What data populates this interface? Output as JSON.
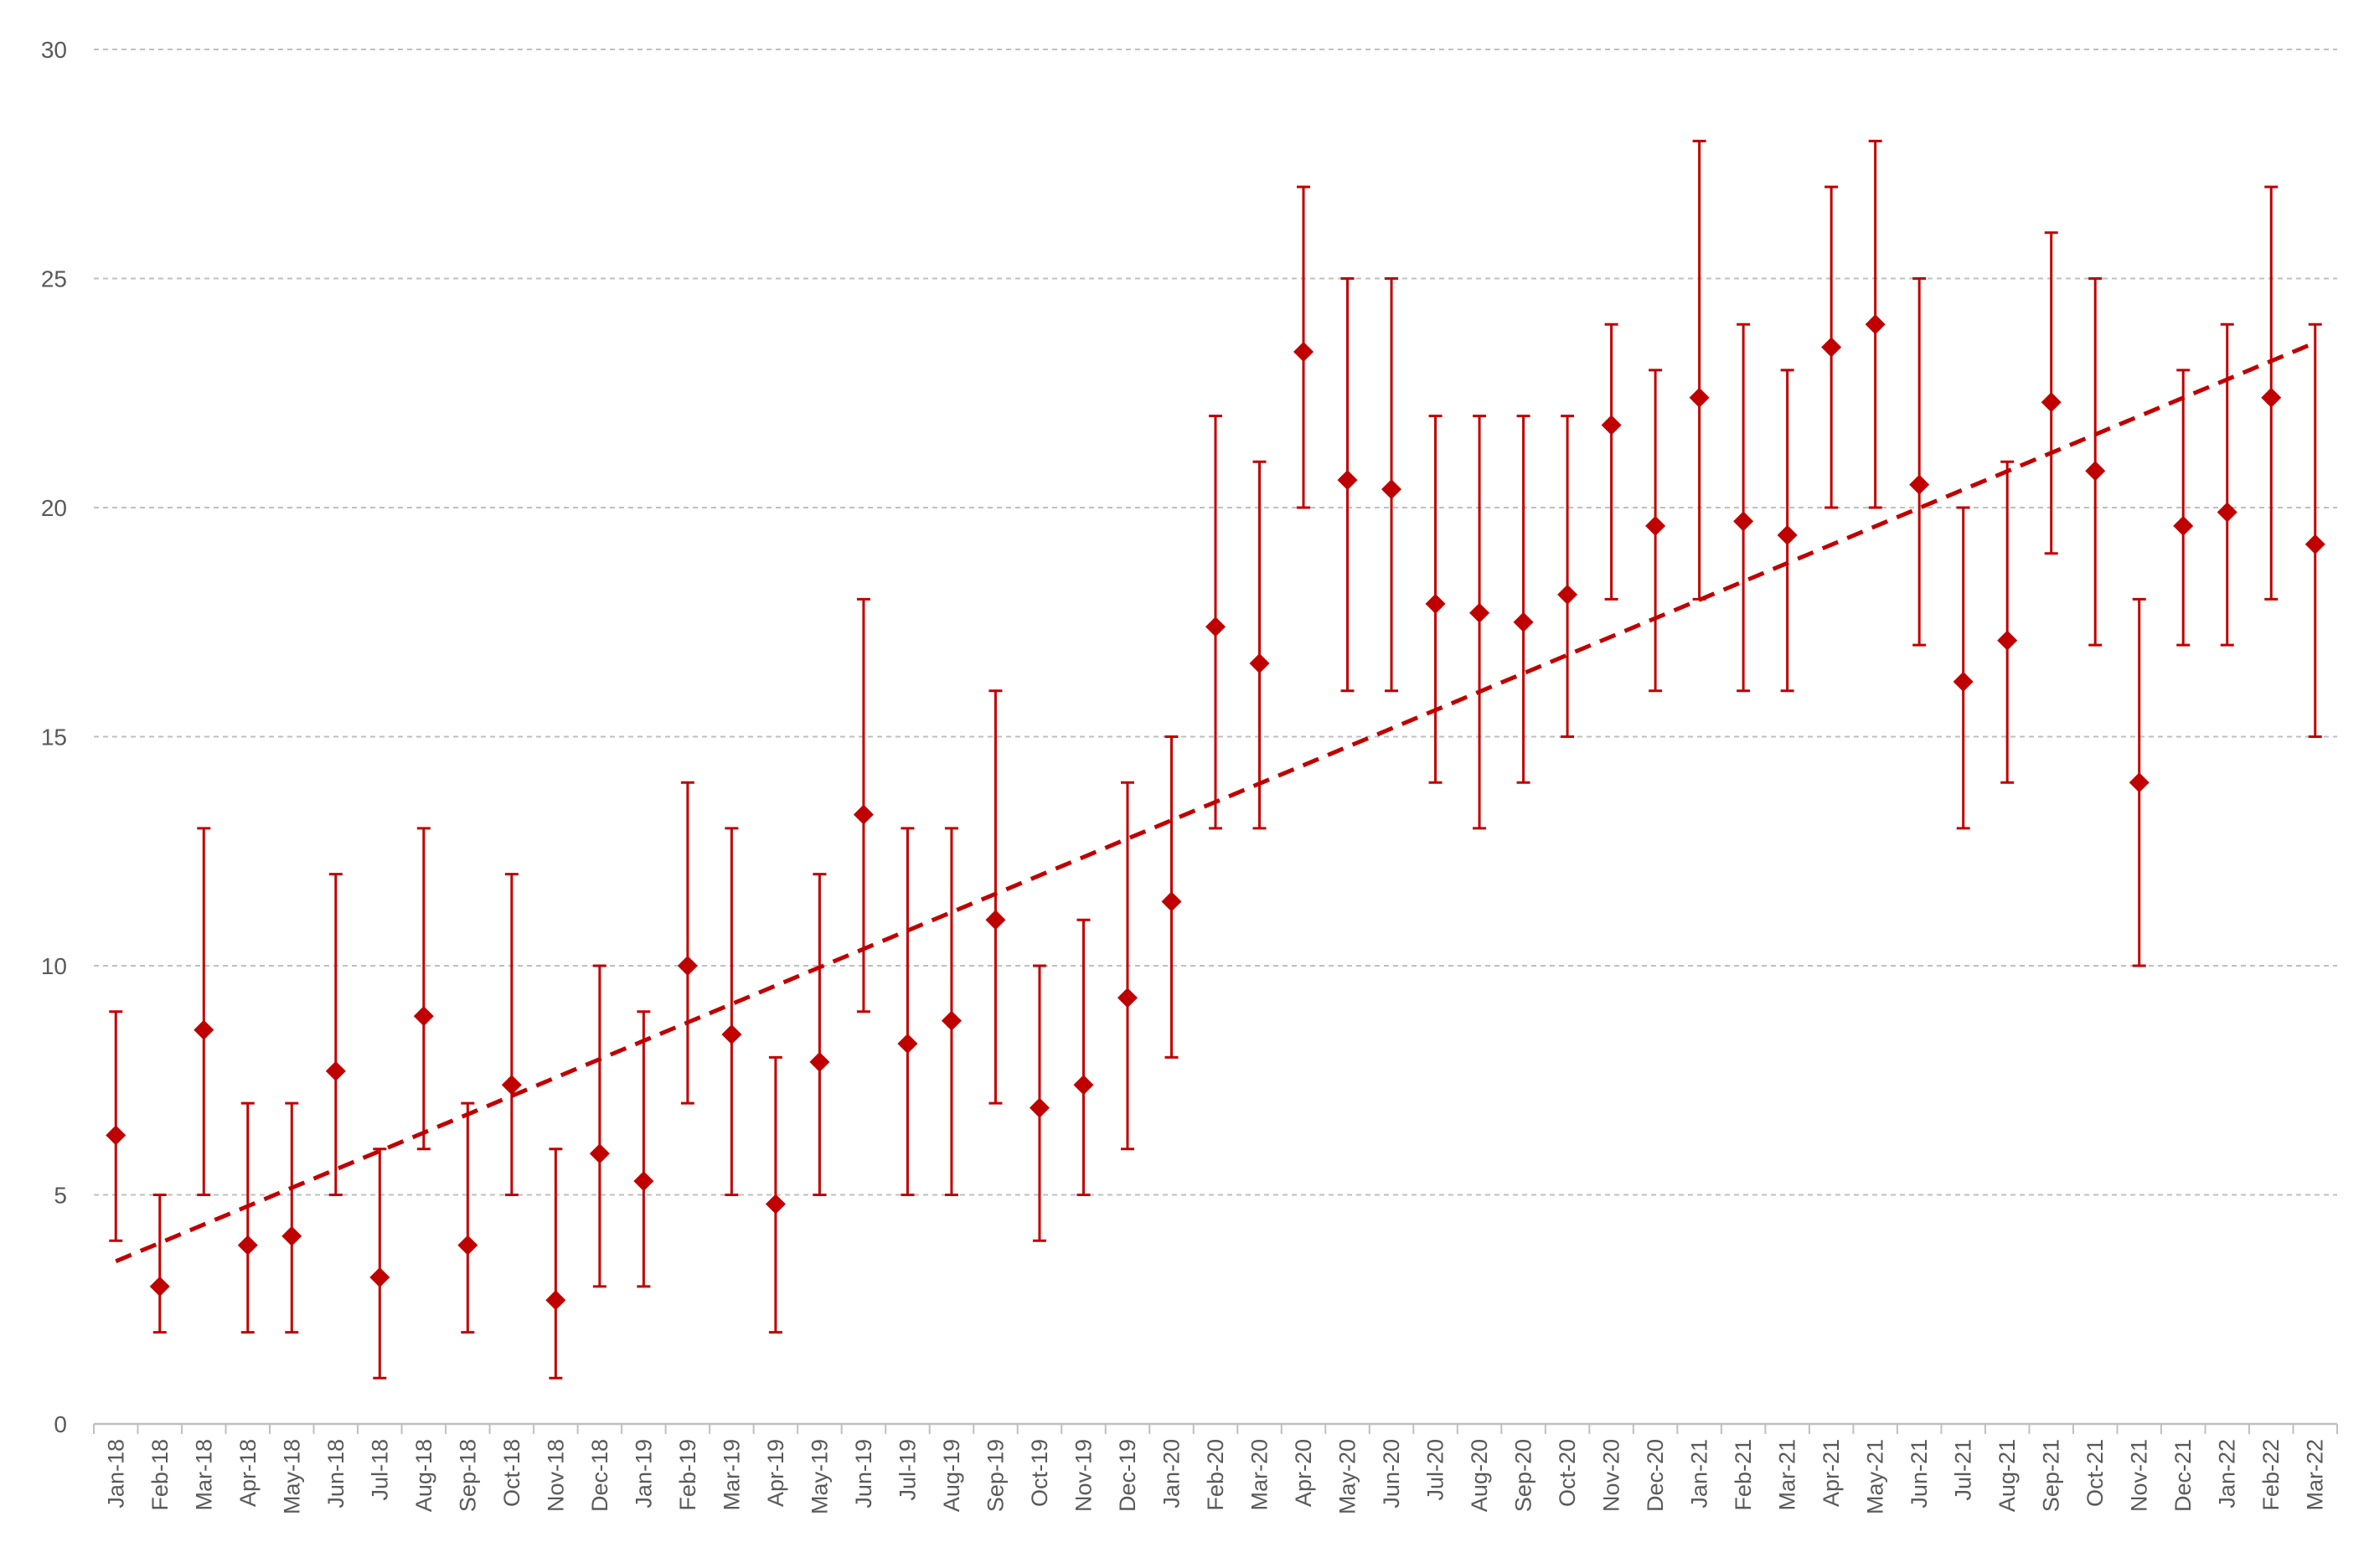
{
  "chart_data": {
    "type": "scatter",
    "title": "",
    "xlabel": "",
    "ylabel": "",
    "ylim": [
      0,
      30
    ],
    "yticks": [
      0,
      5,
      10,
      15,
      20,
      25,
      30
    ],
    "grid": true,
    "legend": "none",
    "colors": {
      "series": "#C00000",
      "grid": "#BFBFBF",
      "axis": "#BFBFBF",
      "text": "#595959"
    },
    "categories": [
      "Jan-18",
      "Feb-18",
      "Mar-18",
      "Apr-18",
      "May-18",
      "Jun-18",
      "Jul-18",
      "Aug-18",
      "Sep-18",
      "Oct-18",
      "Nov-18",
      "Dec-18",
      "Jan-19",
      "Feb-19",
      "Mar-19",
      "Apr-19",
      "May-19",
      "Jun-19",
      "Jul-19",
      "Aug-19",
      "Sep-19",
      "Oct-19",
      "Nov-19",
      "Dec-19",
      "Jan-20",
      "Feb-20",
      "Mar-20",
      "Apr-20",
      "May-20",
      "Jun-20",
      "Jul-20",
      "Aug-20",
      "Sep-20",
      "Oct-20",
      "Nov-20",
      "Dec-20",
      "Jan-21",
      "Feb-21",
      "Mar-21",
      "Apr-21",
      "May-21",
      "Jun-21",
      "Jul-21",
      "Aug-21",
      "Sep-21",
      "Oct-21",
      "Nov-21",
      "Dec-21",
      "Jan-22",
      "Feb-22",
      "Mar-22"
    ],
    "values": [
      6.3,
      3.0,
      8.6,
      3.9,
      4.1,
      7.7,
      3.2,
      8.9,
      3.9,
      7.4,
      2.7,
      5.9,
      5.3,
      10.0,
      8.5,
      4.8,
      7.9,
      13.3,
      8.3,
      8.8,
      11.0,
      6.9,
      7.4,
      9.3,
      11.4,
      17.4,
      16.6,
      23.4,
      20.6,
      20.4,
      17.9,
      17.7,
      17.5,
      18.1,
      21.8,
      19.6,
      22.4,
      19.7,
      19.4,
      23.5,
      24.0,
      20.5,
      16.2,
      17.1,
      22.3,
      20.8,
      14.0,
      19.6,
      19.9,
      22.4,
      19.2
    ],
    "error_low": [
      4,
      2,
      5,
      2,
      2,
      5,
      1,
      6,
      2,
      5,
      1,
      3,
      3,
      7,
      5,
      2,
      5,
      9,
      5,
      5,
      7,
      4,
      5,
      6,
      8,
      13,
      13,
      20,
      16,
      16,
      14,
      13,
      14,
      15,
      18,
      16,
      18,
      16,
      16,
      20,
      20,
      17,
      13,
      14,
      19,
      17,
      10,
      17,
      17,
      18,
      15
    ],
    "error_high": [
      9,
      5,
      13,
      7,
      7,
      12,
      6,
      13,
      7,
      12,
      6,
      10,
      9,
      14,
      13,
      8,
      12,
      18,
      13,
      13,
      16,
      10,
      11,
      14,
      15,
      22,
      21,
      27,
      25,
      25,
      22,
      22,
      22,
      22,
      24,
      23,
      28,
      24,
      23,
      27,
      28,
      25,
      20,
      21,
      26,
      25,
      18,
      23,
      24,
      27,
      24
    ],
    "trendline": {
      "type": "linear",
      "style": "dashed",
      "start": 3.55,
      "end": 23.6
    }
  }
}
